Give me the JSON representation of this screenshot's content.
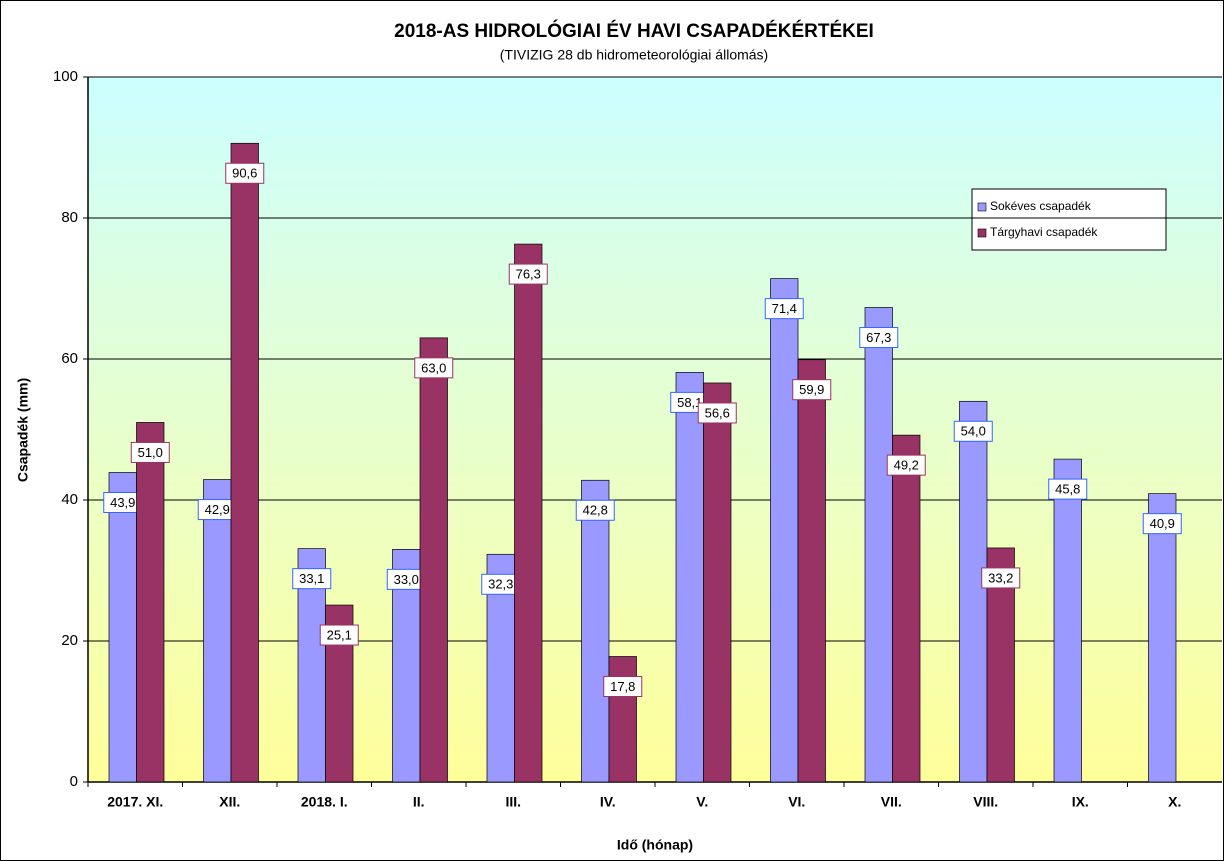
{
  "chart_data": {
    "type": "bar",
    "title": "2018-AS HIDROLÓGIAI  ÉV HAVI  CSAPADÉKÉRTÉKEI",
    "subtitle": "(TIVIZIG  28 db hidrometeorológiai állomás)",
    "y_label": "Csapadék (mm)",
    "x_label": "Idő (hónap)",
    "categories": [
      "2017. XI.",
      "XII.",
      "2018. I.",
      "II.",
      "III.",
      "IV.",
      "V.",
      "VI.",
      "VII.",
      "VIII.",
      "IX.",
      "X."
    ],
    "series": [
      {
        "name": "Sokéves csapadék",
        "color": "#9999ff",
        "values": [
          43.9,
          42.9,
          33.1,
          33.0,
          32.3,
          42.8,
          58.1,
          71.4,
          67.3,
          54.0,
          45.8,
          40.9
        ],
        "value_labels": [
          "43,9",
          "42,9",
          "33,1",
          "33,0",
          "32,3",
          "42,8",
          "58,1",
          "71,4",
          "67,3",
          "54,0",
          "45,8",
          "40,9"
        ]
      },
      {
        "name": "Tárgyhavi csapadék",
        "color": "#993366",
        "values": [
          51.0,
          90.6,
          25.1,
          63.0,
          76.3,
          17.8,
          56.6,
          59.9,
          49.2,
          33.2,
          null,
          null
        ],
        "value_labels": [
          "51,0",
          "90,6",
          "25,1",
          "63,0",
          "76,3",
          "17,8",
          "56,6",
          "59,9",
          "49,2",
          "33,2",
          null,
          null
        ]
      }
    ],
    "ylim": [
      0,
      100
    ],
    "yticks": [
      0,
      20,
      40,
      60,
      80,
      100
    ],
    "grid": true,
    "legend": "upper right"
  }
}
